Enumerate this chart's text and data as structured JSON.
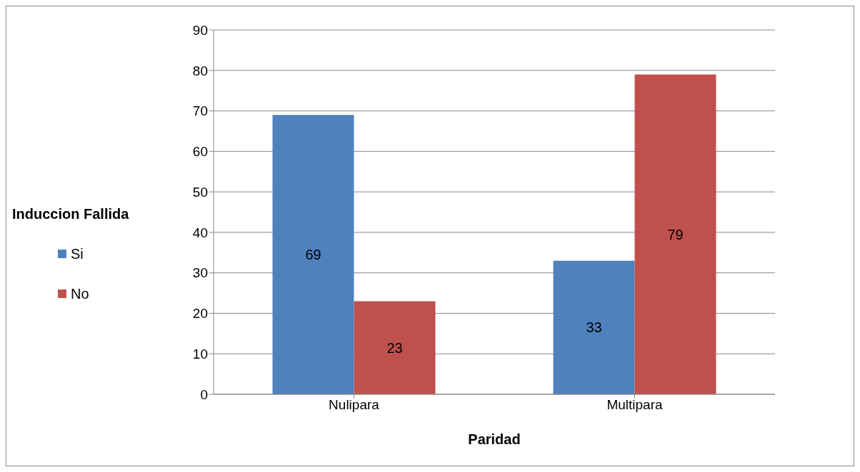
{
  "chart_data": {
    "type": "bar",
    "xlabel": "Paridad",
    "legend_title": "Induccion Fallida",
    "categories": [
      "Nulipara",
      "Multipara"
    ],
    "series": [
      {
        "name": "Si",
        "color": "#4f81bd",
        "values": [
          69,
          33
        ]
      },
      {
        "name": "No",
        "color": "#c0504d",
        "values": [
          23,
          79
        ]
      }
    ],
    "ylim": [
      0,
      90
    ],
    "yticks": [
      0,
      10,
      20,
      30,
      40,
      50,
      60,
      70,
      80,
      90
    ],
    "grid": "y",
    "legend": "left",
    "data_labels": true
  }
}
